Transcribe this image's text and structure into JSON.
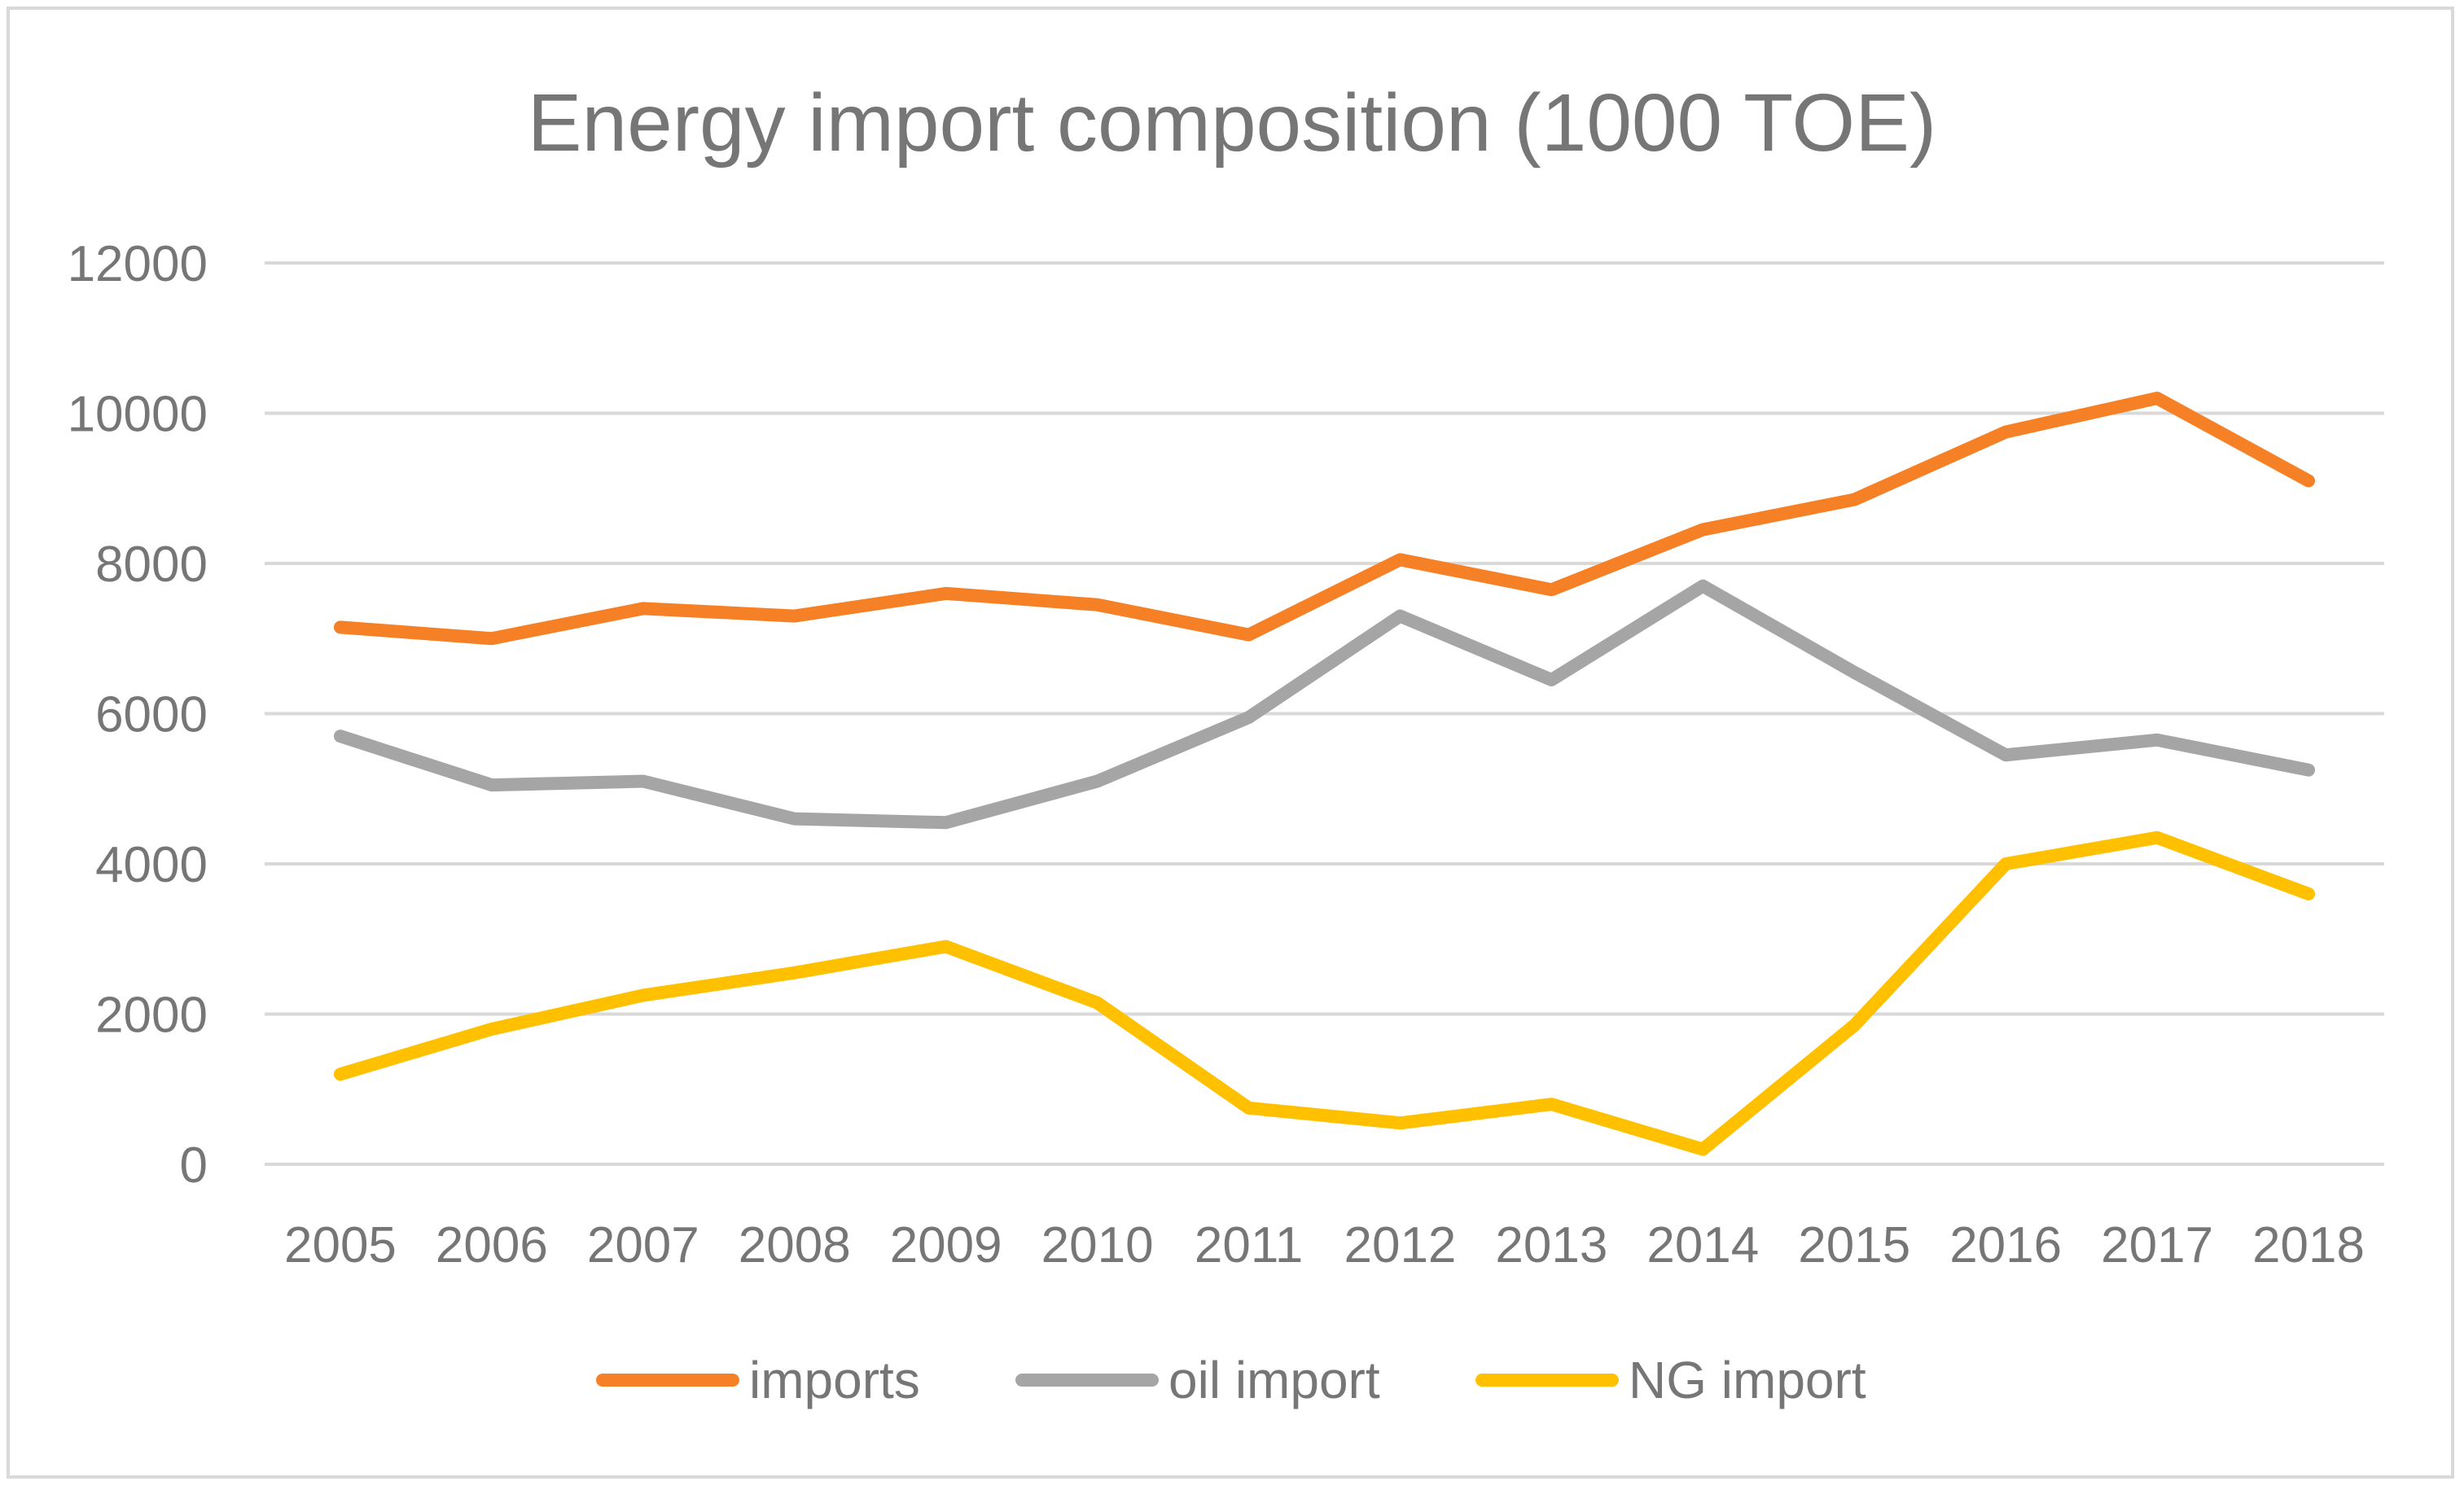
{
  "chart_data": {
    "type": "line",
    "title": "Energy import composition (1000 TOE)",
    "xlabel": "",
    "ylabel": "",
    "categories": [
      "2005",
      "2006",
      "2007",
      "2008",
      "2009",
      "2010",
      "2011",
      "2012",
      "2013",
      "2014",
      "2015",
      "2016",
      "2017",
      "2018"
    ],
    "yticks": [
      "0",
      "2000",
      "4000",
      "6000",
      "8000",
      "10000",
      "12000"
    ],
    "ylim": [
      0,
      12000
    ],
    "grid": true,
    "legend_position": "bottom",
    "series": [
      {
        "name": "imports",
        "color": "#f58026",
        "values": [
          7150,
          7000,
          7400,
          7300,
          7600,
          7450,
          7050,
          8050,
          7650,
          8450,
          8850,
          9750,
          10200,
          9100
        ]
      },
      {
        "name": "oil import",
        "color": "#a5a5a5",
        "values": [
          5700,
          5050,
          5100,
          4600,
          4550,
          5100,
          5950,
          7300,
          6450,
          7700,
          6550,
          5450,
          5650,
          5250
        ]
      },
      {
        "name": "NG import",
        "color": "#ffc000",
        "values": [
          1200,
          1800,
          2250,
          2550,
          2900,
          2150,
          750,
          550,
          800,
          200,
          1850,
          4000,
          4350,
          3600
        ]
      }
    ]
  }
}
